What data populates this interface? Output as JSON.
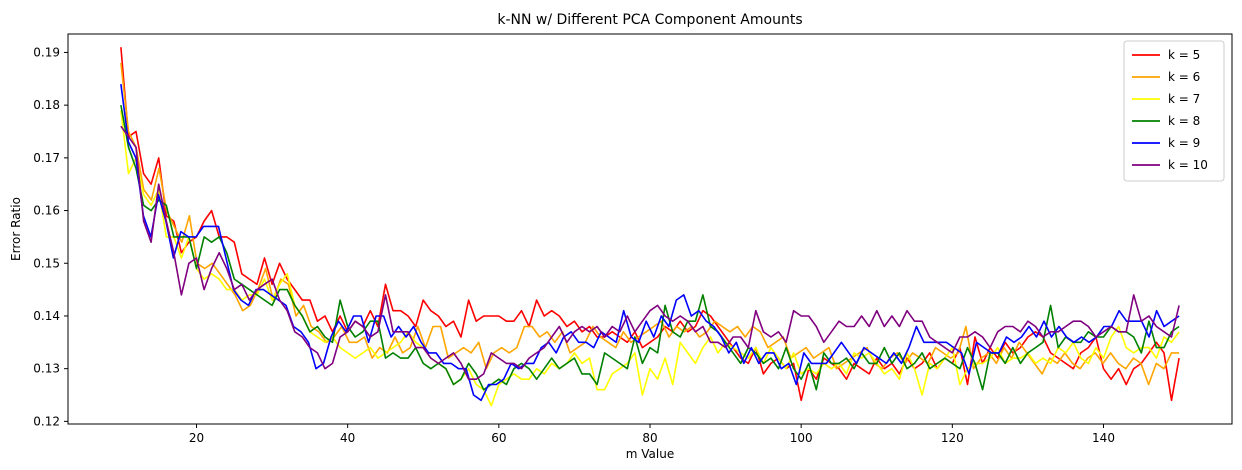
{
  "chart_data": {
    "type": "line",
    "title": "k-NN w/ Different PCA Component Amounts",
    "xlabel": "m Value",
    "ylabel": "Error Ratio",
    "xlim": [
      3,
      157
    ],
    "ylim": [
      0.1195,
      0.1935
    ],
    "xticks": [
      20,
      40,
      60,
      80,
      100,
      120,
      140
    ],
    "yticks": [
      0.12,
      0.13,
      0.14,
      0.15,
      0.16,
      0.17,
      0.18,
      0.19
    ],
    "grid": false,
    "legend_position": "top-right",
    "x_start": 10,
    "x_end": 150,
    "series": [
      {
        "name": "k = 5",
        "color": "#ff0000",
        "values": [
          0.191,
          0.174,
          0.175,
          0.167,
          0.165,
          0.17,
          0.159,
          0.158,
          0.152,
          0.154,
          0.155,
          0.158,
          0.16,
          0.155,
          0.155,
          0.154,
          0.148,
          0.147,
          0.146,
          0.151,
          0.146,
          0.15,
          0.147,
          0.145,
          0.143,
          0.143,
          0.139,
          0.14,
          0.137,
          0.14,
          0.137,
          0.139,
          0.138,
          0.141,
          0.138,
          0.146,
          0.141,
          0.141,
          0.14,
          0.138,
          0.143,
          0.141,
          0.14,
          0.138,
          0.139,
          0.136,
          0.143,
          0.139,
          0.14,
          0.14,
          0.14,
          0.139,
          0.139,
          0.141,
          0.138,
          0.143,
          0.14,
          0.141,
          0.14,
          0.138,
          0.139,
          0.137,
          0.138,
          0.136,
          0.136,
          0.137,
          0.136,
          0.135,
          0.137,
          0.134,
          0.135,
          0.136,
          0.138,
          0.137,
          0.139,
          0.137,
          0.138,
          0.141,
          0.14,
          0.138,
          0.136,
          0.134,
          0.132,
          0.131,
          0.134,
          0.129,
          0.131,
          0.132,
          0.13,
          0.131,
          0.124,
          0.13,
          0.128,
          0.132,
          0.131,
          0.13,
          0.128,
          0.131,
          0.13,
          0.129,
          0.132,
          0.13,
          0.131,
          0.129,
          0.132,
          0.13,
          0.131,
          0.133,
          0.13,
          0.132,
          0.131,
          0.134,
          0.127,
          0.136,
          0.131,
          0.134,
          0.132,
          0.135,
          0.133,
          0.134,
          0.136,
          0.137,
          0.136,
          0.133,
          0.132,
          0.131,
          0.13,
          0.133,
          0.134,
          0.136,
          0.13,
          0.128,
          0.13,
          0.127,
          0.13,
          0.131,
          0.133,
          0.135,
          0.133,
          0.124,
          0.132
        ]
      },
      {
        "name": "k = 6",
        "color": "#ffa500",
        "values": [
          0.188,
          0.175,
          0.172,
          0.164,
          0.162,
          0.168,
          0.16,
          0.157,
          0.154,
          0.159,
          0.15,
          0.149,
          0.15,
          0.148,
          0.146,
          0.144,
          0.141,
          0.142,
          0.145,
          0.149,
          0.143,
          0.147,
          0.146,
          0.14,
          0.142,
          0.138,
          0.137,
          0.135,
          0.136,
          0.138,
          0.135,
          0.135,
          0.136,
          0.132,
          0.134,
          0.133,
          0.136,
          0.133,
          0.134,
          0.138,
          0.134,
          0.138,
          0.138,
          0.132,
          0.133,
          0.134,
          0.133,
          0.135,
          0.13,
          0.133,
          0.134,
          0.133,
          0.134,
          0.138,
          0.138,
          0.136,
          0.137,
          0.135,
          0.137,
          0.133,
          0.134,
          0.135,
          0.138,
          0.136,
          0.135,
          0.134,
          0.137,
          0.135,
          0.136,
          0.137,
          0.138,
          0.139,
          0.136,
          0.138,
          0.137,
          0.138,
          0.136,
          0.137,
          0.139,
          0.138,
          0.137,
          0.138,
          0.136,
          0.138,
          0.137,
          0.134,
          0.135,
          0.136,
          0.132,
          0.133,
          0.134,
          0.132,
          0.133,
          0.134,
          0.13,
          0.131,
          0.132,
          0.133,
          0.134,
          0.131,
          0.13,
          0.132,
          0.133,
          0.131,
          0.133,
          0.132,
          0.131,
          0.134,
          0.133,
          0.132,
          0.133,
          0.138,
          0.13,
          0.132,
          0.133,
          0.131,
          0.134,
          0.132,
          0.135,
          0.133,
          0.131,
          0.129,
          0.132,
          0.131,
          0.133,
          0.131,
          0.13,
          0.132,
          0.133,
          0.131,
          0.133,
          0.131,
          0.13,
          0.132,
          0.131,
          0.127,
          0.131,
          0.13,
          0.133,
          0.133
        ]
      },
      {
        "name": "k = 7",
        "color": "#ffff00",
        "values": [
          0.179,
          0.167,
          0.17,
          0.163,
          0.161,
          0.164,
          0.155,
          0.155,
          0.151,
          0.155,
          0.149,
          0.147,
          0.148,
          0.147,
          0.145,
          0.145,
          0.143,
          0.144,
          0.144,
          0.147,
          0.143,
          0.146,
          0.148,
          0.142,
          0.14,
          0.137,
          0.136,
          0.135,
          0.136,
          0.134,
          0.133,
          0.132,
          0.133,
          0.134,
          0.132,
          0.133,
          0.134,
          0.135,
          0.137,
          0.135,
          0.134,
          0.132,
          0.131,
          0.13,
          0.127,
          0.128,
          0.13,
          0.127,
          0.126,
          0.123,
          0.127,
          0.128,
          0.129,
          0.128,
          0.128,
          0.13,
          0.129,
          0.131,
          0.13,
          0.131,
          0.133,
          0.131,
          0.132,
          0.126,
          0.126,
          0.129,
          0.13,
          0.131,
          0.133,
          0.125,
          0.13,
          0.128,
          0.132,
          0.127,
          0.135,
          0.133,
          0.131,
          0.134,
          0.136,
          0.133,
          0.135,
          0.134,
          0.133,
          0.132,
          0.134,
          0.131,
          0.134,
          0.132,
          0.13,
          0.133,
          0.129,
          0.13,
          0.129,
          0.131,
          0.13,
          0.131,
          0.129,
          0.133,
          0.132,
          0.133,
          0.131,
          0.129,
          0.13,
          0.128,
          0.133,
          0.13,
          0.125,
          0.131,
          0.13,
          0.132,
          0.134,
          0.127,
          0.13,
          0.131,
          0.131,
          0.132,
          0.134,
          0.131,
          0.132,
          0.132,
          0.133,
          0.131,
          0.132,
          0.131,
          0.134,
          0.133,
          0.135,
          0.132,
          0.131,
          0.134,
          0.132,
          0.136,
          0.138,
          0.134,
          0.133,
          0.134,
          0.134,
          0.132,
          0.136,
          0.135,
          0.137
        ]
      },
      {
        "name": "k = 8",
        "color": "#008000",
        "values": [
          0.18,
          0.172,
          0.168,
          0.161,
          0.16,
          0.162,
          0.161,
          0.155,
          0.155,
          0.155,
          0.149,
          0.155,
          0.154,
          0.155,
          0.152,
          0.147,
          0.146,
          0.145,
          0.144,
          0.143,
          0.142,
          0.145,
          0.145,
          0.142,
          0.14,
          0.137,
          0.138,
          0.136,
          0.135,
          0.143,
          0.138,
          0.136,
          0.137,
          0.139,
          0.139,
          0.132,
          0.133,
          0.132,
          0.132,
          0.134,
          0.131,
          0.13,
          0.131,
          0.13,
          0.127,
          0.128,
          0.131,
          0.129,
          0.126,
          0.127,
          0.128,
          0.127,
          0.13,
          0.131,
          0.13,
          0.128,
          0.13,
          0.132,
          0.13,
          0.131,
          0.132,
          0.129,
          0.129,
          0.127,
          0.133,
          0.132,
          0.131,
          0.13,
          0.136,
          0.131,
          0.134,
          0.133,
          0.142,
          0.137,
          0.136,
          0.139,
          0.139,
          0.144,
          0.138,
          0.137,
          0.135,
          0.133,
          0.131,
          0.134,
          0.133,
          0.131,
          0.132,
          0.13,
          0.134,
          0.13,
          0.128,
          0.131,
          0.126,
          0.133,
          0.131,
          0.131,
          0.132,
          0.13,
          0.133,
          0.131,
          0.131,
          0.134,
          0.131,
          0.133,
          0.13,
          0.131,
          0.133,
          0.13,
          0.131,
          0.132,
          0.131,
          0.13,
          0.134,
          0.131,
          0.126,
          0.133,
          0.133,
          0.131,
          0.134,
          0.131,
          0.133,
          0.134,
          0.135,
          0.142,
          0.134,
          0.136,
          0.135,
          0.135,
          0.137,
          0.136,
          0.136,
          0.138,
          0.137,
          0.137,
          0.136,
          0.133,
          0.139,
          0.134,
          0.134,
          0.137,
          0.138
        ]
      },
      {
        "name": "k = 9",
        "color": "#0000ff",
        "values": [
          0.184,
          0.173,
          0.17,
          0.159,
          0.155,
          0.163,
          0.158,
          0.151,
          0.156,
          0.155,
          0.155,
          0.157,
          0.157,
          0.157,
          0.151,
          0.145,
          0.143,
          0.142,
          0.145,
          0.145,
          0.144,
          0.143,
          0.142,
          0.138,
          0.137,
          0.135,
          0.13,
          0.131,
          0.136,
          0.139,
          0.137,
          0.14,
          0.14,
          0.135,
          0.14,
          0.14,
          0.136,
          0.138,
          0.136,
          0.138,
          0.135,
          0.133,
          0.133,
          0.131,
          0.131,
          0.13,
          0.13,
          0.125,
          0.124,
          0.127,
          0.127,
          0.128,
          0.131,
          0.13,
          0.131,
          0.131,
          0.134,
          0.135,
          0.133,
          0.136,
          0.137,
          0.135,
          0.135,
          0.134,
          0.137,
          0.136,
          0.135,
          0.141,
          0.136,
          0.135,
          0.139,
          0.136,
          0.14,
          0.138,
          0.143,
          0.144,
          0.14,
          0.141,
          0.139,
          0.138,
          0.136,
          0.133,
          0.135,
          0.131,
          0.134,
          0.131,
          0.133,
          0.133,
          0.13,
          0.131,
          0.127,
          0.133,
          0.131,
          0.131,
          0.131,
          0.133,
          0.135,
          0.133,
          0.131,
          0.134,
          0.133,
          0.132,
          0.131,
          0.133,
          0.131,
          0.134,
          0.138,
          0.135,
          0.135,
          0.135,
          0.135,
          0.134,
          0.133,
          0.129,
          0.135,
          0.134,
          0.133,
          0.133,
          0.136,
          0.135,
          0.136,
          0.138,
          0.136,
          0.139,
          0.136,
          0.138,
          0.136,
          0.135,
          0.136,
          0.135,
          0.136,
          0.138,
          0.138,
          0.141,
          0.139,
          0.139,
          0.139,
          0.136,
          0.141,
          0.138,
          0.139,
          0.14
        ]
      },
      {
        "name": "k = 10",
        "color": "#800080",
        "values": [
          0.176,
          0.174,
          0.172,
          0.158,
          0.154,
          0.165,
          0.158,
          0.152,
          0.144,
          0.15,
          0.151,
          0.145,
          0.149,
          0.152,
          0.149,
          0.145,
          0.146,
          0.143,
          0.145,
          0.146,
          0.147,
          0.143,
          0.141,
          0.137,
          0.136,
          0.134,
          0.133,
          0.13,
          0.131,
          0.136,
          0.137,
          0.139,
          0.138,
          0.136,
          0.137,
          0.144,
          0.137,
          0.137,
          0.137,
          0.134,
          0.134,
          0.132,
          0.131,
          0.132,
          0.133,
          0.131,
          0.128,
          0.128,
          0.129,
          0.133,
          0.132,
          0.131,
          0.131,
          0.13,
          0.132,
          0.133,
          0.134,
          0.136,
          0.138,
          0.135,
          0.137,
          0.138,
          0.137,
          0.138,
          0.136,
          0.138,
          0.137,
          0.14,
          0.137,
          0.139,
          0.141,
          0.142,
          0.14,
          0.139,
          0.14,
          0.139,
          0.137,
          0.138,
          0.135,
          0.135,
          0.134,
          0.136,
          0.136,
          0.134,
          0.141,
          0.137,
          0.136,
          0.137,
          0.135,
          0.141,
          0.14,
          0.14,
          0.138,
          0.135,
          0.137,
          0.139,
          0.138,
          0.138,
          0.14,
          0.138,
          0.141,
          0.138,
          0.14,
          0.138,
          0.141,
          0.139,
          0.139,
          0.136,
          0.135,
          0.134,
          0.133,
          0.136,
          0.136,
          0.137,
          0.136,
          0.134,
          0.137,
          0.138,
          0.138,
          0.137,
          0.139,
          0.138,
          0.136,
          0.137,
          0.137,
          0.138,
          0.139,
          0.139,
          0.138,
          0.136,
          0.137,
          0.138,
          0.137,
          0.137,
          0.144,
          0.139,
          0.14,
          0.138,
          0.137,
          0.136,
          0.142
        ]
      }
    ]
  }
}
